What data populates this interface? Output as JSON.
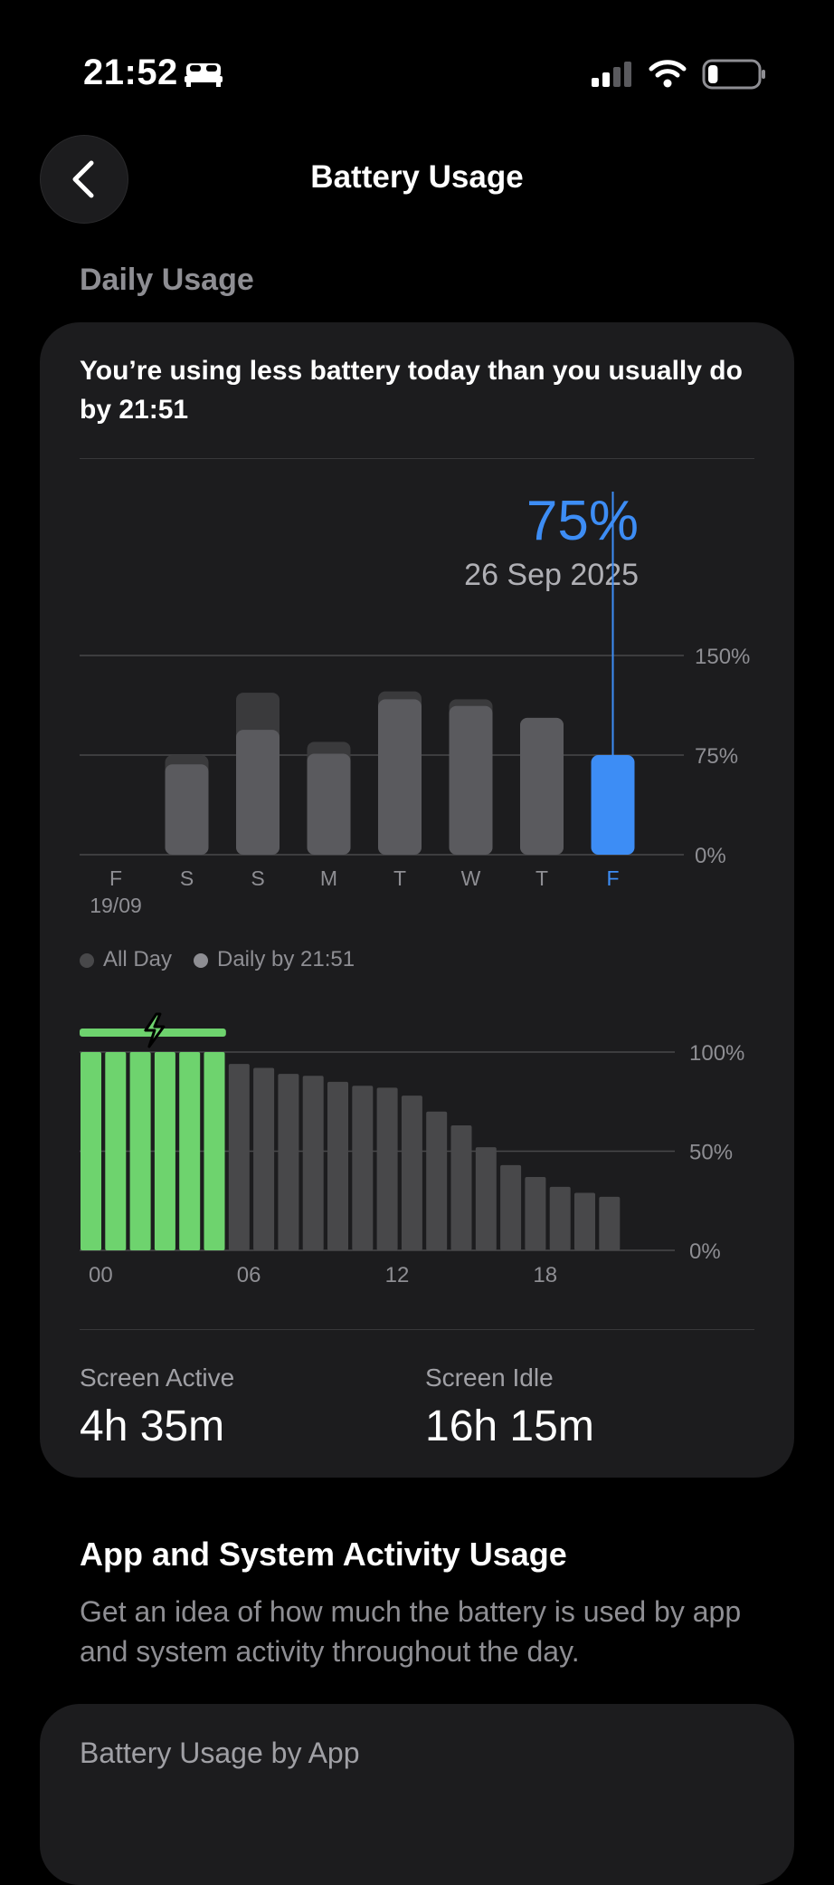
{
  "status_bar": {
    "time": "21:52",
    "icons": [
      "bed-icon",
      "signal-icon",
      "wifi-icon",
      "battery-icon"
    ],
    "battery_level": 0.2
  },
  "nav": {
    "title": "Battery Usage",
    "back_icon": "chevron-left-icon"
  },
  "daily_usage": {
    "section_title": "Daily Usage",
    "headline": "You’re using less battery today than you usually do by 21:51",
    "selected": {
      "percent": "75%",
      "date": "26 Sep 2025"
    },
    "legend": {
      "all_day": "All Day",
      "daily_by": "Daily by 21:51"
    },
    "stats": [
      {
        "label": "Screen Active",
        "value": "4h 35m"
      },
      {
        "label": "Screen Idle",
        "value": "16h 15m"
      }
    ]
  },
  "chart_data": [
    {
      "type": "bar",
      "categories": [
        "F",
        "S",
        "S",
        "M",
        "T",
        "W",
        "T",
        "F"
      ],
      "first_date_label": "19/09",
      "series": [
        {
          "name": "All Day",
          "values": [
            0,
            75,
            122,
            85,
            123,
            117,
            103,
            75
          ]
        },
        {
          "name": "Daily by 21:51",
          "values": [
            0,
            68,
            94,
            76,
            117,
            112,
            103,
            75
          ]
        }
      ],
      "ylim": [
        0,
        150
      ],
      "yticks": [
        "0%",
        "75%",
        "150%"
      ],
      "highlight_index": 7,
      "colors": {
        "all_day": "#3a3a3c",
        "daily": "#5a5a5e",
        "highlight": "#3d8df5"
      }
    },
    {
      "type": "bar",
      "x_ticks": [
        "00",
        "06",
        "12",
        "18"
      ],
      "values": [
        100,
        100,
        100,
        100,
        100,
        100,
        94,
        92,
        89,
        88,
        85,
        83,
        82,
        78,
        70,
        63,
        52,
        43,
        37,
        32,
        29,
        27
      ],
      "charging_bars": 6,
      "ylim": [
        0,
        100
      ],
      "yticks": [
        "0%",
        "50%",
        "100%"
      ],
      "colors": {
        "charging": "#6ed36e",
        "normal": "#48484a",
        "charging_line": "#6ed36e"
      }
    }
  ],
  "app_activity": {
    "title": "App and System Activity Usage",
    "description": "Get an idea of how much the battery is used by app and system activity throughout the day.",
    "card_title": "Battery Usage by App"
  }
}
